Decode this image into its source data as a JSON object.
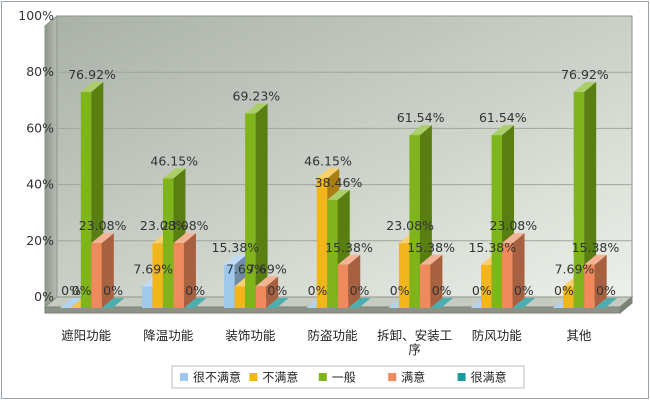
{
  "chart_data": {
    "type": "bar",
    "title": "",
    "xlabel": "",
    "ylabel": "",
    "ylim": [
      0,
      100
    ],
    "yticks": [
      "0%",
      "20%",
      "40%",
      "60%",
      "80%",
      "100%"
    ],
    "categories": [
      "遮阳功能",
      "降温功能",
      "装饰功能",
      "防盗功能",
      "拆卸、安装工序",
      "防风功能",
      "其他"
    ],
    "series": [
      {
        "name": "很不满意",
        "color": "#9ec8ec",
        "values": [
          0,
          7.69,
          15.38,
          0,
          0,
          0,
          0
        ],
        "labels": [
          "0%",
          "7.69%",
          "15.38%",
          "0%",
          "0%",
          "0%",
          "0%"
        ]
      },
      {
        "name": "不满意",
        "color": "#f2b61c",
        "values": [
          0,
          23.08,
          7.69,
          46.15,
          23.08,
          15.38,
          7.69
        ],
        "labels": [
          "0%",
          "23.08%",
          "7.69%",
          "46.15%",
          "23.08%",
          "15.38%",
          "7.69%"
        ]
      },
      {
        "name": "一般",
        "color": "#7fb41a",
        "values": [
          76.92,
          46.15,
          69.23,
          38.46,
          61.54,
          61.54,
          76.92
        ],
        "labels": [
          "76.92%",
          "46.15%",
          "69.23%",
          "38.46%",
          "61.54%",
          "61.54%",
          "76.92%"
        ]
      },
      {
        "name": "满意",
        "color": "#f08a5c",
        "values": [
          23.08,
          23.08,
          7.69,
          15.38,
          15.38,
          23.08,
          15.38
        ],
        "labels": [
          "23.08%",
          "23.08%",
          "7.69%",
          "15.38%",
          "15.38%",
          "23.08%",
          "15.38%"
        ]
      },
      {
        "name": "很满意",
        "color": "#1f9a9a",
        "values": [
          0,
          0,
          0,
          0,
          0,
          0,
          0
        ],
        "labels": [
          "0%",
          "0%",
          "0%",
          "0%",
          "0%",
          "0%",
          "0%"
        ]
      }
    ],
    "grid": true,
    "legend": "bottom"
  }
}
